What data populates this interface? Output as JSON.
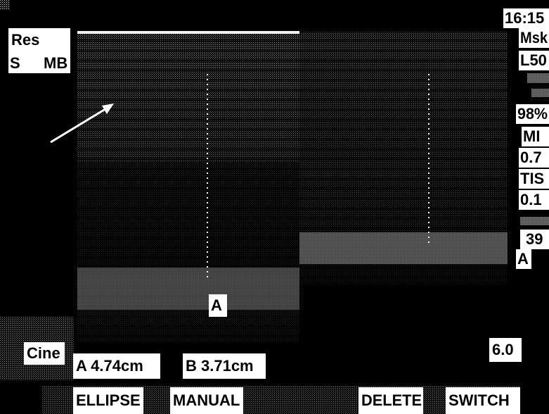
{
  "top_left": {
    "mode": "Res",
    "line2_left": "S",
    "line2_right": "MB"
  },
  "side_panel": {
    "time": "16:15",
    "preset": "Msk",
    "probe": "L50",
    "power": "98%",
    "mi_label": "MI",
    "mi_value": "0.7",
    "tis_label": "TIS",
    "tis_value": "0.1",
    "depth": "39",
    "marker": "A"
  },
  "image": {
    "caliper_label": "A"
  },
  "measurements": {
    "cine": "Cine",
    "a": "A 4.74cm",
    "b": "B 3.71cm",
    "scale": "6.0"
  },
  "menu": [
    "ELLIPSE",
    "MANUAL",
    "DELETE",
    "SWITCH"
  ]
}
